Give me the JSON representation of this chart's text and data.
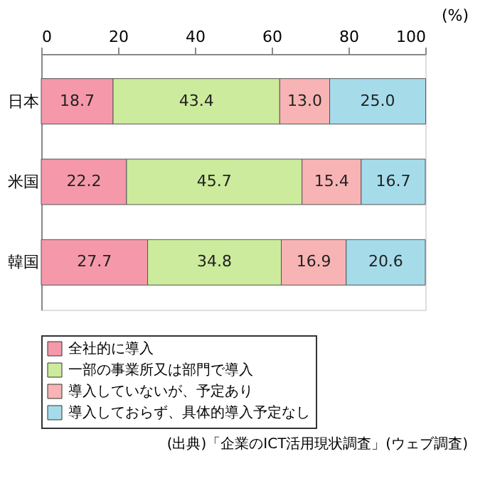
{
  "chart_data": {
    "type": "bar",
    "orientation": "horizontal",
    "stacked": true,
    "categories": [
      "日本",
      "米国",
      "韓国"
    ],
    "series": [
      {
        "name": "全社的に導入",
        "color": "#f599aa",
        "values": [
          18.7,
          22.2,
          27.7
        ],
        "value_labels": [
          "18.7",
          "22.2",
          "27.7"
        ]
      },
      {
        "name": "一部の事業所又は部門で導入",
        "color": "#cdeb9c",
        "values": [
          43.4,
          45.7,
          34.8
        ],
        "value_labels": [
          "43.4",
          "45.7",
          "34.8"
        ]
      },
      {
        "name": "導入していないが、予定あり",
        "color": "#f8b4b4",
        "values": [
          13.0,
          15.4,
          16.9
        ],
        "value_labels": [
          "13.0",
          "15.4",
          "16.9"
        ]
      },
      {
        "name": "導入しておらず、具体的導入予定なし",
        "color": "#a6dcea",
        "values": [
          25.0,
          16.7,
          20.6
        ],
        "value_labels": [
          "25.0",
          "16.7",
          "20.6"
        ]
      }
    ],
    "xlabel": "(%)",
    "xlim": [
      0,
      100
    ],
    "xticks": [
      0,
      20,
      40,
      60,
      80,
      100
    ],
    "grid": false,
    "legend": "bottom",
    "annotations": [
      "(出典)「企業のICT活用現状調査」(ウェブ調査)"
    ]
  }
}
